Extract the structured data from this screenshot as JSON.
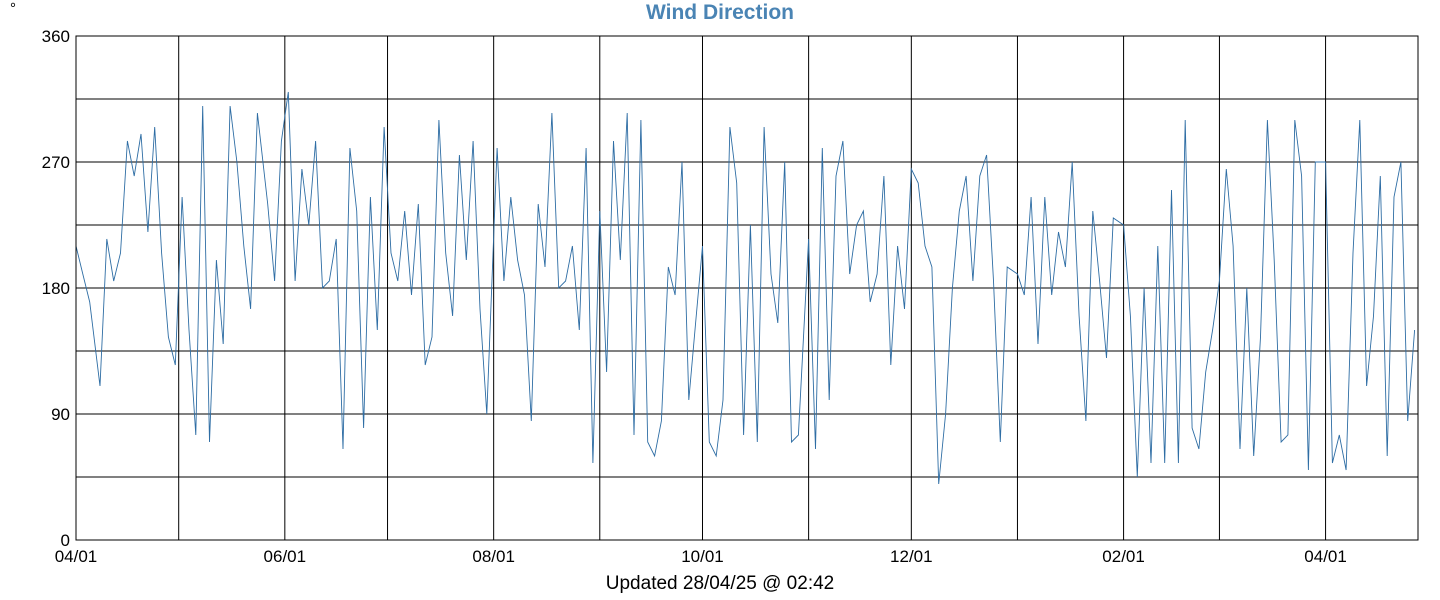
{
  "unit_label": "°",
  "footer": "Updated 28/04/25 @ 02:42",
  "colors": {
    "title": "#4a84b4",
    "line": "#2e6da4",
    "grid": "#000000"
  },
  "chart_data": {
    "type": "line",
    "title": "Wind Direction",
    "ylabel": "°",
    "xlabel": "",
    "ylim": [
      0,
      360
    ],
    "yticks": [
      0,
      90,
      180,
      270,
      360
    ],
    "ygrid_step": 45,
    "xlim": [
      "2024-04-01",
      "2025-04-28"
    ],
    "xtick_labels": [
      {
        "date": "2024-04-01",
        "label": "04/01"
      },
      {
        "date": "2024-06-01",
        "label": "06/01"
      },
      {
        "date": "2024-08-01",
        "label": "08/01"
      },
      {
        "date": "2024-10-01",
        "label": "10/01"
      },
      {
        "date": "2024-12-01",
        "label": "12/01"
      },
      {
        "date": "2025-02-01",
        "label": "02/01"
      },
      {
        "date": "2025-04-01",
        "label": "04/01"
      }
    ],
    "month_gridlines": [
      "2024-05-01",
      "2024-06-01",
      "2024-07-01",
      "2024-08-01",
      "2024-09-01",
      "2024-10-01",
      "2024-11-01",
      "2024-12-01",
      "2025-01-01",
      "2025-02-01",
      "2025-03-01",
      "2025-04-01"
    ],
    "grid": true,
    "series": [
      {
        "x": [
          "2024-04-01",
          "2024-04-03",
          "2024-04-05",
          "2024-04-08",
          "2024-04-10",
          "2024-04-12",
          "2024-04-14",
          "2024-04-16",
          "2024-04-18",
          "2024-04-20",
          "2024-04-22",
          "2024-04-24",
          "2024-04-26",
          "2024-04-28",
          "2024-04-30",
          "2024-05-02",
          "2024-05-04",
          "2024-05-06",
          "2024-05-08",
          "2024-05-10",
          "2024-05-12",
          "2024-05-14",
          "2024-05-16",
          "2024-05-18",
          "2024-05-20",
          "2024-05-22",
          "2024-05-24",
          "2024-05-27",
          "2024-05-29",
          "2024-05-31",
          "2024-06-02",
          "2024-06-04",
          "2024-06-06",
          "2024-06-08",
          "2024-06-10",
          "2024-06-12",
          "2024-06-14",
          "2024-06-16",
          "2024-06-18",
          "2024-06-20",
          "2024-06-22",
          "2024-06-24",
          "2024-06-26",
          "2024-06-28",
          "2024-06-30",
          "2024-07-02",
          "2024-07-04",
          "2024-07-06",
          "2024-07-08",
          "2024-07-10",
          "2024-07-12",
          "2024-07-14",
          "2024-07-16",
          "2024-07-18",
          "2024-07-20",
          "2024-07-22",
          "2024-07-24",
          "2024-07-26",
          "2024-07-28",
          "2024-07-30",
          "2024-08-02",
          "2024-08-04",
          "2024-08-06",
          "2024-08-08",
          "2024-08-10",
          "2024-08-12",
          "2024-08-14",
          "2024-08-16",
          "2024-08-18",
          "2024-08-20",
          "2024-08-22",
          "2024-08-24",
          "2024-08-26",
          "2024-08-28",
          "2024-08-30",
          "2024-09-01",
          "2024-09-03",
          "2024-09-05",
          "2024-09-07",
          "2024-09-09",
          "2024-09-11",
          "2024-09-13",
          "2024-09-15",
          "2024-09-17",
          "2024-09-19",
          "2024-09-21",
          "2024-09-23",
          "2024-09-25",
          "2024-09-27",
          "2024-09-29",
          "2024-10-01",
          "2024-10-03",
          "2024-10-05",
          "2024-10-07",
          "2024-10-09",
          "2024-10-11",
          "2024-10-13",
          "2024-10-15",
          "2024-10-17",
          "2024-10-19",
          "2024-10-21",
          "2024-10-23",
          "2024-10-25",
          "2024-10-27",
          "2024-10-29",
          "2024-11-01",
          "2024-11-03",
          "2024-11-05",
          "2024-11-07",
          "2024-11-09",
          "2024-11-11",
          "2024-11-13",
          "2024-11-15",
          "2024-11-17",
          "2024-11-19",
          "2024-11-21",
          "2024-11-23",
          "2024-11-25",
          "2024-11-27",
          "2024-11-29",
          "2024-12-01",
          "2024-12-03",
          "2024-12-05",
          "2024-12-07",
          "2024-12-09",
          "2024-12-11",
          "2024-12-13",
          "2024-12-15",
          "2024-12-17",
          "2024-12-19",
          "2024-12-21",
          "2024-12-23",
          "2024-12-25",
          "2024-12-27",
          "2024-12-29",
          "2025-01-01",
          "2025-01-03",
          "2025-01-05",
          "2025-01-07",
          "2025-01-09",
          "2025-01-11",
          "2025-01-13",
          "2025-01-15",
          "2025-01-17",
          "2025-01-19",
          "2025-01-21",
          "2025-01-23",
          "2025-01-25",
          "2025-01-27",
          "2025-01-29",
          "2025-02-01",
          "2025-02-03",
          "2025-02-05",
          "2025-02-07",
          "2025-02-09",
          "2025-02-11",
          "2025-02-13",
          "2025-02-15",
          "2025-02-17",
          "2025-02-19",
          "2025-02-21",
          "2025-02-23",
          "2025-02-25",
          "2025-02-27",
          "2025-03-01",
          "2025-03-03",
          "2025-03-05",
          "2025-03-07",
          "2025-03-09",
          "2025-03-11",
          "2025-03-13",
          "2025-03-15",
          "2025-03-17",
          "2025-03-19",
          "2025-03-21",
          "2025-03-23",
          "2025-03-25",
          "2025-03-27",
          "2025-03-29",
          "2025-04-01",
          "2025-04-03",
          "2025-04-05",
          "2025-04-07",
          "2025-04-09",
          "2025-04-11",
          "2025-04-13",
          "2025-04-15",
          "2025-04-17",
          "2025-04-19",
          "2025-04-21",
          "2025-04-23",
          "2025-04-25",
          "2025-04-27"
        ],
        "values": [
          210,
          190,
          170,
          110,
          215,
          185,
          205,
          285,
          260,
          290,
          220,
          295,
          205,
          145,
          125,
          245,
          150,
          75,
          310,
          70,
          200,
          140,
          310,
          270,
          210,
          165,
          305,
          240,
          185,
          285,
          320,
          185,
          265,
          225,
          285,
          180,
          185,
          215,
          65,
          280,
          235,
          80,
          245,
          150,
          295,
          205,
          185,
          235,
          175,
          240,
          125,
          145,
          300,
          205,
          160,
          275,
          200,
          285,
          165,
          90,
          280,
          185,
          245,
          200,
          175,
          85,
          240,
          195,
          305,
          180,
          185,
          210,
          150,
          280,
          55,
          235,
          120,
          285,
          200,
          305,
          75,
          300,
          70,
          60,
          85,
          195,
          175,
          270,
          100,
          155,
          210,
          70,
          60,
          100,
          295,
          255,
          75,
          225,
          70,
          295,
          190,
          155,
          270,
          70,
          75,
          215,
          65,
          280,
          100,
          260,
          285,
          190,
          225,
          235,
          170,
          190,
          260,
          125,
          210,
          165,
          265,
          255,
          210,
          195,
          40,
          90,
          180,
          235,
          260,
          185,
          260,
          275,
          185,
          70,
          195,
          190,
          175,
          245,
          140,
          245,
          175,
          220,
          195,
          270,
          160,
          85,
          235,
          185,
          130,
          230,
          225,
          160,
          45,
          180,
          55,
          210,
          55,
          250,
          55,
          300,
          80,
          65,
          120,
          150,
          185,
          265,
          210,
          65,
          180,
          60,
          145,
          300,
          200,
          70,
          75,
          300,
          260,
          50,
          270,
          270,
          55,
          75,
          50,
          205,
          300,
          110,
          160,
          260,
          60,
          245,
          270,
          85,
          150
        ]
      }
    ]
  }
}
